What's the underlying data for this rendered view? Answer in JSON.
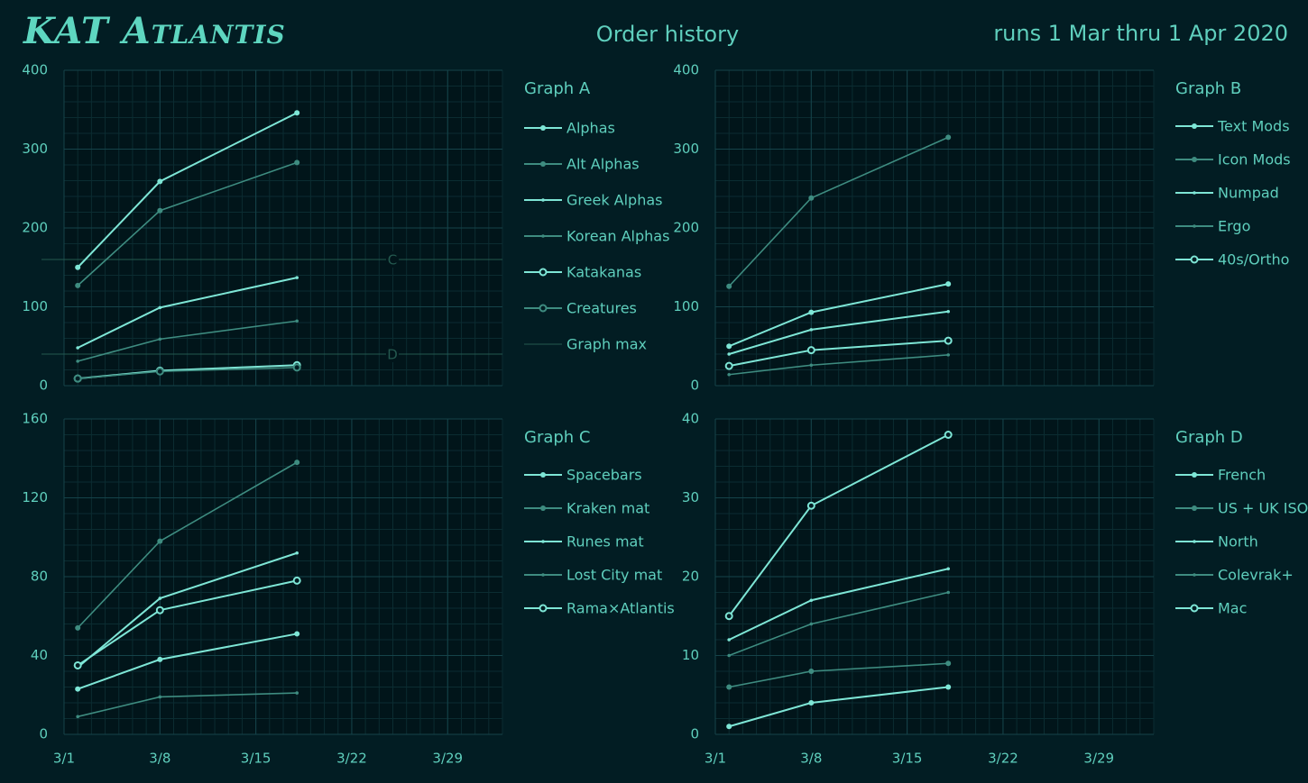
{
  "header": {
    "logo": "KAT Atlantis",
    "title": "Order history",
    "subtitle": "runs 1 Mar thru 1 Apr 2020"
  },
  "chart_data": [
    {
      "type": "line",
      "legend_title": "Graph A",
      "x": [
        "3/2",
        "3/8",
        "3/18"
      ],
      "xlim": [
        "3/1",
        "4/2"
      ],
      "xticks": [
        "3/1",
        "3/8",
        "3/15",
        "3/22",
        "3/29"
      ],
      "show_xtick_labels": false,
      "ylim": [
        0,
        400
      ],
      "yticks": [
        0,
        100,
        200,
        300,
        400
      ],
      "grid": true,
      "series": [
        {
          "name": "Alphas",
          "color": "#7ee6d6",
          "marker": "dot",
          "values": [
            150,
            259,
            346
          ]
        },
        {
          "name": "Alt Alphas",
          "color": "#3e8c80",
          "marker": "dot",
          "values": [
            127,
            222,
            283
          ]
        },
        {
          "name": "Greek Alphas",
          "color": "#7ee6d6",
          "marker": "small",
          "values": [
            48,
            99,
            137
          ]
        },
        {
          "name": "Korean Alphas",
          "color": "#3e8c80",
          "marker": "small",
          "values": [
            31,
            59,
            82
          ]
        },
        {
          "name": "Katakanas",
          "color": "#7ee6d6",
          "marker": "circle",
          "values": [
            9,
            19,
            26
          ]
        },
        {
          "name": "Creatures",
          "color": "#3e8c80",
          "marker": "circle",
          "values": [
            9,
            18,
            23
          ]
        }
      ],
      "reference_lines": {
        "name": "Graph max",
        "color": "#24594f",
        "lines": [
          {
            "label": "C",
            "value": 160
          },
          {
            "label": "D",
            "value": 40
          }
        ]
      }
    },
    {
      "type": "line",
      "legend_title": "Graph B",
      "x": [
        "3/2",
        "3/8",
        "3/18"
      ],
      "xlim": [
        "3/1",
        "4/2"
      ],
      "xticks": [
        "3/1",
        "3/8",
        "3/15",
        "3/22",
        "3/29"
      ],
      "show_xtick_labels": false,
      "ylim": [
        0,
        400
      ],
      "yticks": [
        0,
        100,
        200,
        300,
        400
      ],
      "grid": true,
      "series": [
        {
          "name": "Text Mods",
          "color": "#7ee6d6",
          "marker": "dot",
          "values": [
            50,
            93,
            129
          ]
        },
        {
          "name": "Icon Mods",
          "color": "#3e8c80",
          "marker": "dot",
          "values": [
            126,
            238,
            315
          ]
        },
        {
          "name": "Numpad",
          "color": "#7ee6d6",
          "marker": "small",
          "values": [
            40,
            71,
            94
          ]
        },
        {
          "name": "Ergo",
          "color": "#3e8c80",
          "marker": "small",
          "values": [
            14,
            26,
            39
          ]
        },
        {
          "name": "40s/Ortho",
          "color": "#7ee6d6",
          "marker": "circle",
          "values": [
            25,
            45,
            57
          ]
        }
      ]
    },
    {
      "type": "line",
      "legend_title": "Graph C",
      "x": [
        "3/2",
        "3/8",
        "3/18"
      ],
      "xlim": [
        "3/1",
        "4/2"
      ],
      "xticks": [
        "3/1",
        "3/8",
        "3/15",
        "3/22",
        "3/29"
      ],
      "show_xtick_labels": true,
      "ylim": [
        0,
        160
      ],
      "yticks": [
        0,
        40,
        80,
        120,
        160
      ],
      "grid": true,
      "series": [
        {
          "name": "Spacebars",
          "color": "#7ee6d6",
          "marker": "dot",
          "values": [
            23,
            38,
            51
          ]
        },
        {
          "name": "Kraken mat",
          "color": "#3e8c80",
          "marker": "dot",
          "values": [
            54,
            98,
            138
          ]
        },
        {
          "name": "Runes mat",
          "color": "#7ee6d6",
          "marker": "small",
          "values": [
            34,
            69,
            92
          ]
        },
        {
          "name": "Lost City mat",
          "color": "#3e8c80",
          "marker": "small",
          "values": [
            9,
            19,
            21
          ]
        },
        {
          "name": "Rama×Atlantis",
          "color": "#7ee6d6",
          "marker": "circle",
          "values": [
            35,
            63,
            78
          ]
        }
      ]
    },
    {
      "type": "line",
      "legend_title": "Graph D",
      "x": [
        "3/2",
        "3/8",
        "3/18"
      ],
      "xlim": [
        "3/1",
        "4/2"
      ],
      "xticks": [
        "3/1",
        "3/8",
        "3/15",
        "3/22",
        "3/29"
      ],
      "show_xtick_labels": true,
      "ylim": [
        0,
        40
      ],
      "yticks": [
        0,
        10,
        20,
        30,
        40
      ],
      "grid": true,
      "series": [
        {
          "name": "French",
          "color": "#7ee6d6",
          "marker": "dot",
          "values": [
            1,
            4,
            6
          ]
        },
        {
          "name": "US + UK ISO",
          "color": "#3e8c80",
          "marker": "dot",
          "values": [
            6,
            8,
            9
          ]
        },
        {
          "name": "North",
          "color": "#7ee6d6",
          "marker": "small",
          "values": [
            12,
            17,
            21
          ]
        },
        {
          "name": "Colevrak+",
          "color": "#3e8c80",
          "marker": "small",
          "values": [
            10,
            14,
            18
          ]
        },
        {
          "name": "Mac",
          "color": "#7ee6d6",
          "marker": "circle",
          "values": [
            15,
            29,
            38
          ]
        }
      ]
    }
  ]
}
